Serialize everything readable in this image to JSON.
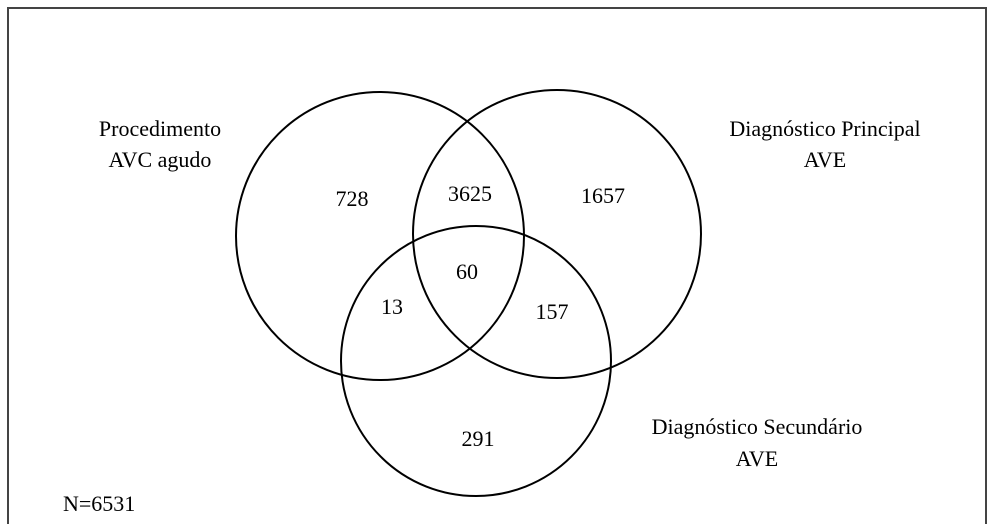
{
  "sets": [
    {
      "lines": [
        "Procedimento",
        "AVC agudo"
      ]
    },
    {
      "lines": [
        "Diagnóstico Principal",
        "AVE"
      ]
    },
    {
      "lines": [
        "Diagnóstico Secundário",
        "AVE"
      ]
    }
  ],
  "regions": [
    728,
    3625,
    1657,
    60,
    13,
    157,
    291
  ],
  "total": "N=6531"
}
